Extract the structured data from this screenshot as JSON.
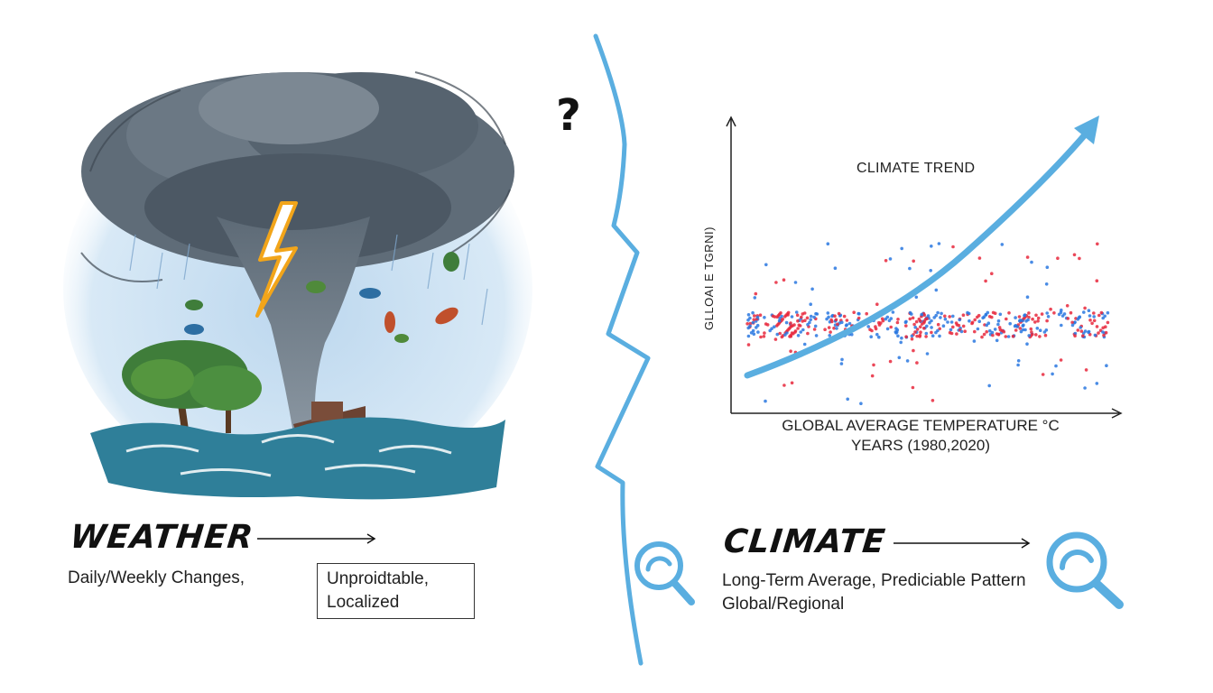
{
  "divider": {
    "question_mark": "?"
  },
  "weather": {
    "title": "WEATHER",
    "description": "Daily/Weekly Changes,",
    "box_text_line1": "Unproidtable,",
    "box_text_line2": "Localized",
    "illustration": "tornado-storm-illustration"
  },
  "climate": {
    "title": "CLIMATE",
    "description_line1": "Long-Term Average, Prediciable Pattern",
    "description_line2": "Global/Regional"
  },
  "colors": {
    "accent_blue": "#5aaee0",
    "red_points": "#e8283c",
    "blue_points": "#2a78e0",
    "text": "#1a1a1a"
  },
  "chart_data": {
    "type": "scatter",
    "title": "CLIMATE TREND",
    "xlabel": "GLOBAL AVERAGE TEMPERATURE °C",
    "xlabel_line2": "YEARS (1980,2020)",
    "ylabel": "GLLOAI E TGRNI)",
    "x_range": [
      1980,
      2020
    ],
    "grid": false,
    "legend": "none",
    "series": [
      {
        "name": "red points",
        "color": "#e8283c",
        "description": "noisy scatter around flat baseline"
      },
      {
        "name": "blue points",
        "color": "#2a78e0",
        "description": "noisy scatter around flat baseline"
      },
      {
        "name": "trend arrow",
        "color": "#5aaee0",
        "description": "upward curving trend line, rising steeply toward 2020"
      }
    ]
  }
}
